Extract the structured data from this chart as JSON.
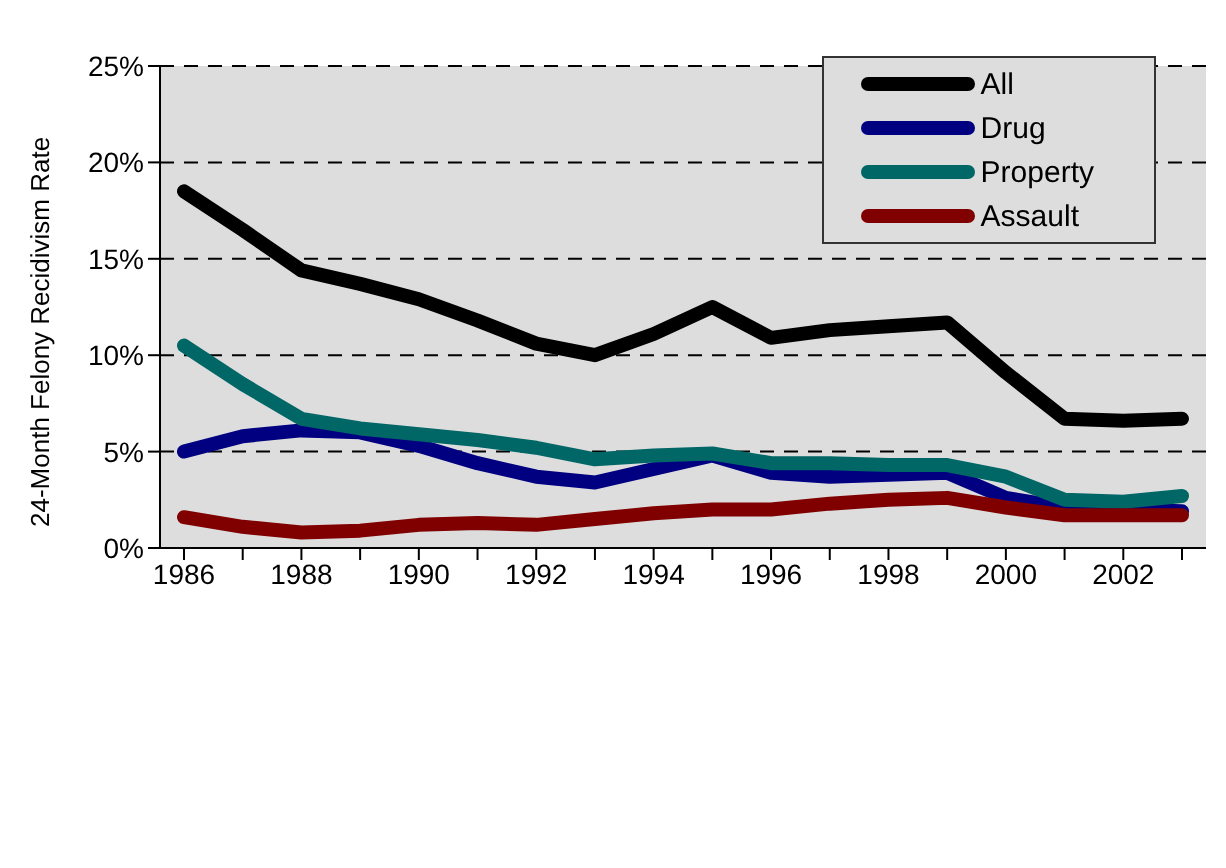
{
  "chart_data": {
    "type": "line",
    "ylabel": "24-Month Felony Recidivism Rate",
    "categories": [
      "1986",
      null,
      "1988",
      null,
      "1990",
      null,
      "1992",
      null,
      "1994",
      null,
      "1996",
      null,
      "1998",
      null,
      "2000",
      null,
      "2002",
      null
    ],
    "series": [
      {
        "name": "All",
        "color": "#000000",
        "values": [
          18.5,
          16.5,
          14.4,
          13.7,
          12.9,
          11.8,
          10.6,
          10.0,
          11.1,
          12.5,
          10.9,
          11.3,
          11.5,
          11.7,
          9.1,
          6.7,
          6.6,
          6.7
        ]
      },
      {
        "name": "Drug",
        "color": "#000080",
        "values": [
          5.0,
          5.8,
          6.1,
          6.0,
          5.3,
          4.4,
          3.7,
          3.4,
          4.1,
          4.8,
          3.9,
          3.7,
          3.8,
          3.9,
          2.6,
          2.1,
          2.0,
          1.9
        ]
      },
      {
        "name": "Property",
        "color": "#006666",
        "values": [
          10.5,
          8.5,
          6.7,
          6.2,
          5.9,
          5.6,
          5.2,
          4.6,
          4.8,
          4.9,
          4.4,
          4.4,
          4.3,
          4.3,
          3.7,
          2.5,
          2.4,
          2.7
        ]
      },
      {
        "name": "Assault",
        "color": "#800000",
        "values": [
          1.6,
          1.1,
          0.8,
          0.9,
          1.2,
          1.3,
          1.2,
          1.5,
          1.8,
          2.0,
          2.0,
          2.3,
          2.5,
          2.6,
          2.1,
          1.7,
          1.7,
          1.7
        ]
      }
    ],
    "ylim": [
      0,
      25
    ],
    "yticks": [
      {
        "value": 0,
        "label": "0%"
      },
      {
        "value": 5,
        "label": "5%"
      },
      {
        "value": 10,
        "label": "10%"
      },
      {
        "value": 15,
        "label": "15%"
      },
      {
        "value": 20,
        "label": "20%"
      },
      {
        "value": 25,
        "label": "25%"
      }
    ],
    "grid": "y",
    "legend": "top right",
    "marker": "none",
    "line_style": "solid"
  }
}
